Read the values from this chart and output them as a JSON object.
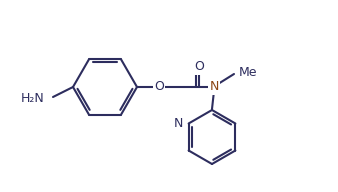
{
  "bg_color": "#ffffff",
  "line_color": "#2d2d5e",
  "line_color_N": "#8B4513",
  "line_width": 1.5,
  "font_size": 9,
  "H2N": "H₂N",
  "O_label": "O",
  "N_amide": "N",
  "O_ether": "O",
  "N_pyridine": "N",
  "Me_label": "Me"
}
